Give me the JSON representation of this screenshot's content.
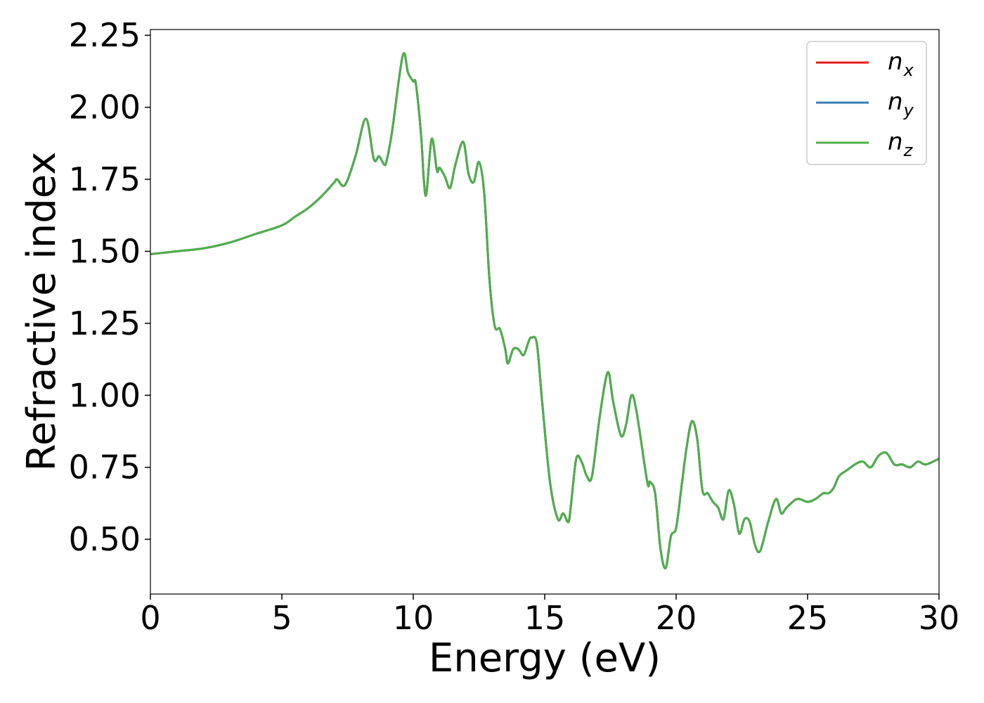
{
  "chart_data": {
    "type": "line",
    "title": "",
    "xlabel": "Energy (eV)",
    "ylabel": "Refractive index",
    "xlim": [
      0,
      30
    ],
    "ylim": [
      0.31,
      2.27
    ],
    "xticks": [
      0,
      5,
      10,
      15,
      20,
      25,
      30
    ],
    "xtick_labels": [
      "0",
      "5",
      "10",
      "15",
      "20",
      "25",
      "30"
    ],
    "yticks": [
      0.5,
      0.75,
      1.0,
      1.25,
      1.5,
      1.75,
      2.0,
      2.25
    ],
    "ytick_labels": [
      "0.50",
      "0.75",
      "1.00",
      "1.25",
      "1.50",
      "1.75",
      "2.00",
      "2.25"
    ],
    "grid": false,
    "legend_position": "top-right",
    "colors": {
      "nx": "#e41a1c",
      "ny": "#377eb8",
      "nz": "#4daf4a"
    },
    "legend": [
      {
        "base": "n",
        "sub": "x"
      },
      {
        "base": "n",
        "sub": "y"
      },
      {
        "base": "n",
        "sub": "z"
      }
    ],
    "series": [
      {
        "name": "nx",
        "x": [
          0,
          1,
          2,
          3,
          4,
          5,
          5.5,
          6,
          6.5,
          7,
          7.1,
          7.4,
          7.8,
          8.2,
          8.5,
          8.7,
          8.9,
          9.0,
          9.2,
          9.6,
          9.8,
          10.0,
          10.1,
          10.3,
          10.4,
          10.5,
          10.7,
          10.9,
          11.0,
          11.2,
          11.4,
          11.6,
          11.9,
          12.1,
          12.3,
          12.5,
          12.7,
          12.9,
          13.1,
          13.3,
          13.5,
          13.6,
          13.8,
          14.0,
          14.2,
          14.4,
          14.5,
          14.7,
          14.9,
          15.2,
          15.5,
          15.7,
          15.9,
          16.0,
          16.2,
          16.4,
          16.6,
          16.8,
          17.1,
          17.4,
          17.6,
          17.9,
          18.1,
          18.3,
          18.5,
          18.9,
          19.0,
          19.2,
          19.4,
          19.6,
          19.8,
          20.0,
          20.2,
          20.4,
          20.6,
          20.8,
          21.0,
          21.2,
          21.4,
          21.6,
          21.8,
          22.0,
          22.2,
          22.4,
          22.6,
          22.8,
          23.0,
          23.2,
          23.5,
          23.8,
          24.0,
          24.2,
          24.6,
          25.0,
          25.3,
          25.6,
          25.8,
          26.0,
          26.2,
          26.5,
          26.8,
          27.1,
          27.4,
          27.7,
          28.0,
          28.3,
          28.6,
          28.9,
          29.2,
          29.5,
          30.0
        ],
        "y": [
          1.49,
          1.5,
          1.51,
          1.53,
          1.56,
          1.59,
          1.62,
          1.65,
          1.69,
          1.74,
          1.75,
          1.73,
          1.83,
          1.96,
          1.82,
          1.83,
          1.8,
          1.82,
          1.92,
          2.18,
          2.12,
          2.09,
          2.08,
          1.9,
          1.75,
          1.7,
          1.89,
          1.78,
          1.79,
          1.76,
          1.72,
          1.8,
          1.88,
          1.77,
          1.74,
          1.81,
          1.7,
          1.4,
          1.24,
          1.23,
          1.16,
          1.11,
          1.16,
          1.16,
          1.14,
          1.19,
          1.2,
          1.18,
          0.98,
          0.7,
          0.57,
          0.59,
          0.56,
          0.62,
          0.78,
          0.77,
          0.72,
          0.72,
          0.93,
          1.08,
          0.98,
          0.86,
          0.9,
          1.0,
          0.94,
          0.7,
          0.7,
          0.66,
          0.47,
          0.4,
          0.51,
          0.54,
          0.68,
          0.82,
          0.91,
          0.85,
          0.67,
          0.66,
          0.63,
          0.61,
          0.57,
          0.67,
          0.62,
          0.52,
          0.57,
          0.56,
          0.48,
          0.46,
          0.56,
          0.64,
          0.59,
          0.61,
          0.64,
          0.63,
          0.64,
          0.66,
          0.66,
          0.68,
          0.72,
          0.74,
          0.76,
          0.77,
          0.75,
          0.79,
          0.8,
          0.76,
          0.76,
          0.75,
          0.77,
          0.76,
          0.78
        ]
      },
      {
        "name": "ny",
        "x": [
          0,
          1,
          2,
          3,
          4,
          5,
          5.5,
          6,
          6.5,
          7,
          7.1,
          7.4,
          7.8,
          8.2,
          8.5,
          8.7,
          8.9,
          9.0,
          9.2,
          9.6,
          9.8,
          10.0,
          10.1,
          10.3,
          10.4,
          10.5,
          10.7,
          10.9,
          11.0,
          11.2,
          11.4,
          11.6,
          11.9,
          12.1,
          12.3,
          12.5,
          12.7,
          12.9,
          13.1,
          13.3,
          13.5,
          13.6,
          13.8,
          14.0,
          14.2,
          14.4,
          14.5,
          14.7,
          14.9,
          15.2,
          15.5,
          15.7,
          15.9,
          16.0,
          16.2,
          16.4,
          16.6,
          16.8,
          17.1,
          17.4,
          17.6,
          17.9,
          18.1,
          18.3,
          18.5,
          18.9,
          19.0,
          19.2,
          19.4,
          19.6,
          19.8,
          20.0,
          20.2,
          20.4,
          20.6,
          20.8,
          21.0,
          21.2,
          21.4,
          21.6,
          21.8,
          22.0,
          22.2,
          22.4,
          22.6,
          22.8,
          23.0,
          23.2,
          23.5,
          23.8,
          24.0,
          24.2,
          24.6,
          25.0,
          25.3,
          25.6,
          25.8,
          26.0,
          26.2,
          26.5,
          26.8,
          27.1,
          27.4,
          27.7,
          28.0,
          28.3,
          28.6,
          28.9,
          29.2,
          29.5,
          30.0
        ],
        "y": [
          1.49,
          1.5,
          1.51,
          1.53,
          1.56,
          1.59,
          1.62,
          1.65,
          1.69,
          1.74,
          1.75,
          1.73,
          1.83,
          1.96,
          1.82,
          1.83,
          1.8,
          1.82,
          1.92,
          2.18,
          2.12,
          2.09,
          2.08,
          1.9,
          1.75,
          1.7,
          1.89,
          1.78,
          1.79,
          1.76,
          1.72,
          1.8,
          1.88,
          1.77,
          1.74,
          1.81,
          1.7,
          1.4,
          1.24,
          1.23,
          1.16,
          1.11,
          1.16,
          1.16,
          1.14,
          1.19,
          1.2,
          1.18,
          0.98,
          0.7,
          0.57,
          0.59,
          0.56,
          0.62,
          0.78,
          0.77,
          0.72,
          0.72,
          0.93,
          1.08,
          0.98,
          0.86,
          0.9,
          1.0,
          0.94,
          0.7,
          0.7,
          0.66,
          0.47,
          0.4,
          0.51,
          0.54,
          0.68,
          0.82,
          0.91,
          0.85,
          0.67,
          0.66,
          0.63,
          0.61,
          0.57,
          0.67,
          0.62,
          0.52,
          0.57,
          0.56,
          0.48,
          0.46,
          0.56,
          0.64,
          0.59,
          0.61,
          0.64,
          0.63,
          0.64,
          0.66,
          0.66,
          0.68,
          0.72,
          0.74,
          0.76,
          0.77,
          0.75,
          0.79,
          0.8,
          0.76,
          0.76,
          0.75,
          0.77,
          0.76,
          0.78
        ]
      },
      {
        "name": "nz",
        "x": [
          0,
          1,
          2,
          3,
          4,
          5,
          5.5,
          6,
          6.5,
          7,
          7.1,
          7.4,
          7.8,
          8.2,
          8.5,
          8.7,
          8.9,
          9.0,
          9.2,
          9.6,
          9.8,
          10.0,
          10.1,
          10.3,
          10.4,
          10.5,
          10.7,
          10.9,
          11.0,
          11.2,
          11.4,
          11.6,
          11.9,
          12.1,
          12.3,
          12.5,
          12.7,
          12.9,
          13.1,
          13.3,
          13.5,
          13.6,
          13.8,
          14.0,
          14.2,
          14.4,
          14.5,
          14.7,
          14.9,
          15.2,
          15.5,
          15.7,
          15.9,
          16.0,
          16.2,
          16.4,
          16.6,
          16.8,
          17.1,
          17.4,
          17.6,
          17.9,
          18.1,
          18.3,
          18.5,
          18.9,
          19.0,
          19.2,
          19.4,
          19.6,
          19.8,
          20.0,
          20.2,
          20.4,
          20.6,
          20.8,
          21.0,
          21.2,
          21.4,
          21.6,
          21.8,
          22.0,
          22.2,
          22.4,
          22.6,
          22.8,
          23.0,
          23.2,
          23.5,
          23.8,
          24.0,
          24.2,
          24.6,
          25.0,
          25.3,
          25.6,
          25.8,
          26.0,
          26.2,
          26.5,
          26.8,
          27.1,
          27.4,
          27.7,
          28.0,
          28.3,
          28.6,
          28.9,
          29.2,
          29.5,
          30.0
        ],
        "y": [
          1.49,
          1.5,
          1.51,
          1.53,
          1.56,
          1.59,
          1.62,
          1.65,
          1.69,
          1.74,
          1.75,
          1.73,
          1.83,
          1.96,
          1.82,
          1.83,
          1.8,
          1.82,
          1.92,
          2.18,
          2.12,
          2.09,
          2.08,
          1.9,
          1.75,
          1.7,
          1.89,
          1.78,
          1.79,
          1.76,
          1.72,
          1.8,
          1.88,
          1.77,
          1.74,
          1.81,
          1.7,
          1.4,
          1.24,
          1.23,
          1.16,
          1.11,
          1.16,
          1.16,
          1.14,
          1.19,
          1.2,
          1.18,
          0.98,
          0.7,
          0.57,
          0.59,
          0.56,
          0.62,
          0.78,
          0.77,
          0.72,
          0.72,
          0.93,
          1.08,
          0.98,
          0.86,
          0.9,
          1.0,
          0.94,
          0.7,
          0.7,
          0.66,
          0.47,
          0.4,
          0.51,
          0.54,
          0.68,
          0.82,
          0.91,
          0.85,
          0.67,
          0.66,
          0.63,
          0.61,
          0.57,
          0.67,
          0.62,
          0.52,
          0.57,
          0.56,
          0.48,
          0.46,
          0.56,
          0.64,
          0.59,
          0.61,
          0.64,
          0.63,
          0.64,
          0.66,
          0.66,
          0.68,
          0.72,
          0.74,
          0.76,
          0.77,
          0.75,
          0.79,
          0.8,
          0.76,
          0.76,
          0.75,
          0.77,
          0.76,
          0.78
        ]
      }
    ]
  }
}
